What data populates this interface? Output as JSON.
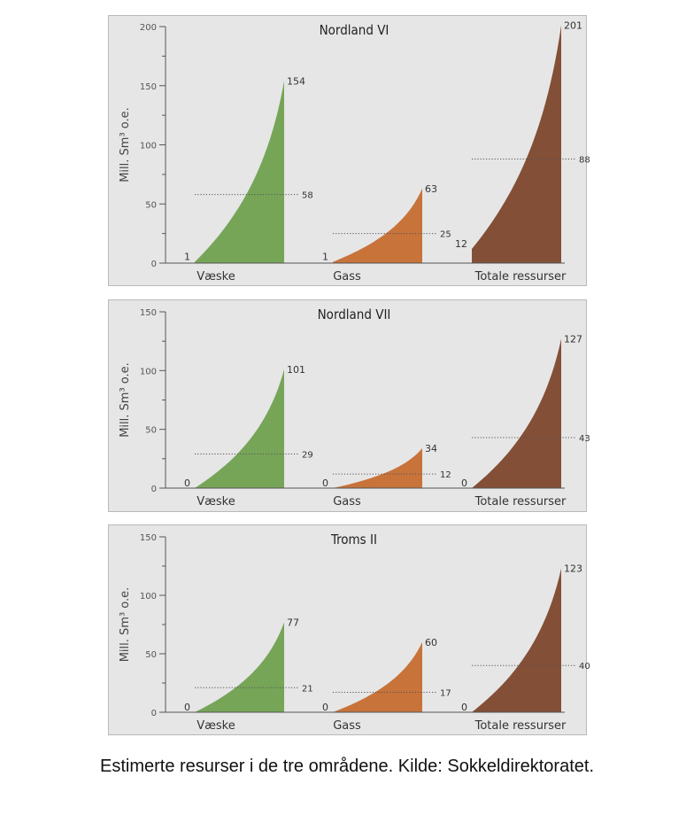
{
  "colors": {
    "vaeske": "#76a558",
    "gass": "#c7733a",
    "totale": "#834f37",
    "axis": "#555555",
    "text": "#333333",
    "panel_bg": "#e6e6e6"
  },
  "caption": "Estimerte resurser i de tre områdene. Kilde: Sokkeldirektoratet.",
  "chart_data": [
    {
      "type": "area",
      "title": "Nordland VI",
      "ylabel": "Mill. Sm³ o.e.",
      "ylim": [
        0,
        200
      ],
      "yticks": [
        0,
        50,
        100,
        150,
        200
      ],
      "categories": [
        "Væske",
        "Gass",
        "Totale ressurser"
      ],
      "series": [
        {
          "name": "Væske",
          "low": 1,
          "mean": 58,
          "high": 154
        },
        {
          "name": "Gass",
          "low": 1,
          "mean": 25,
          "high": 63
        },
        {
          "name": "Totale ressurser",
          "low": 12,
          "mean": 88,
          "high": 201
        }
      ]
    },
    {
      "type": "area",
      "title": "Nordland VII",
      "ylabel": "Mill. Sm³ o.e.",
      "ylim": [
        0,
        150
      ],
      "yticks": [
        0,
        50,
        100,
        150
      ],
      "categories": [
        "Væske",
        "Gass",
        "Totale ressurser"
      ],
      "series": [
        {
          "name": "Væske",
          "low": 0,
          "mean": 29,
          "high": 101
        },
        {
          "name": "Gass",
          "low": 0,
          "mean": 12,
          "high": 34
        },
        {
          "name": "Totale ressurser",
          "low": 0,
          "mean": 43,
          "high": 127
        }
      ]
    },
    {
      "type": "area",
      "title": "Troms II",
      "ylabel": "Mill. Sm³ o.e.",
      "ylim": [
        0,
        150
      ],
      "yticks": [
        0,
        50,
        100,
        150
      ],
      "categories": [
        "Væske",
        "Gass",
        "Totale ressurser"
      ],
      "series": [
        {
          "name": "Væske",
          "low": 0,
          "mean": 21,
          "high": 77
        },
        {
          "name": "Gass",
          "low": 0,
          "mean": 17,
          "high": 60
        },
        {
          "name": "Totale ressurser",
          "low": 0,
          "mean": 40,
          "high": 123
        }
      ]
    }
  ]
}
